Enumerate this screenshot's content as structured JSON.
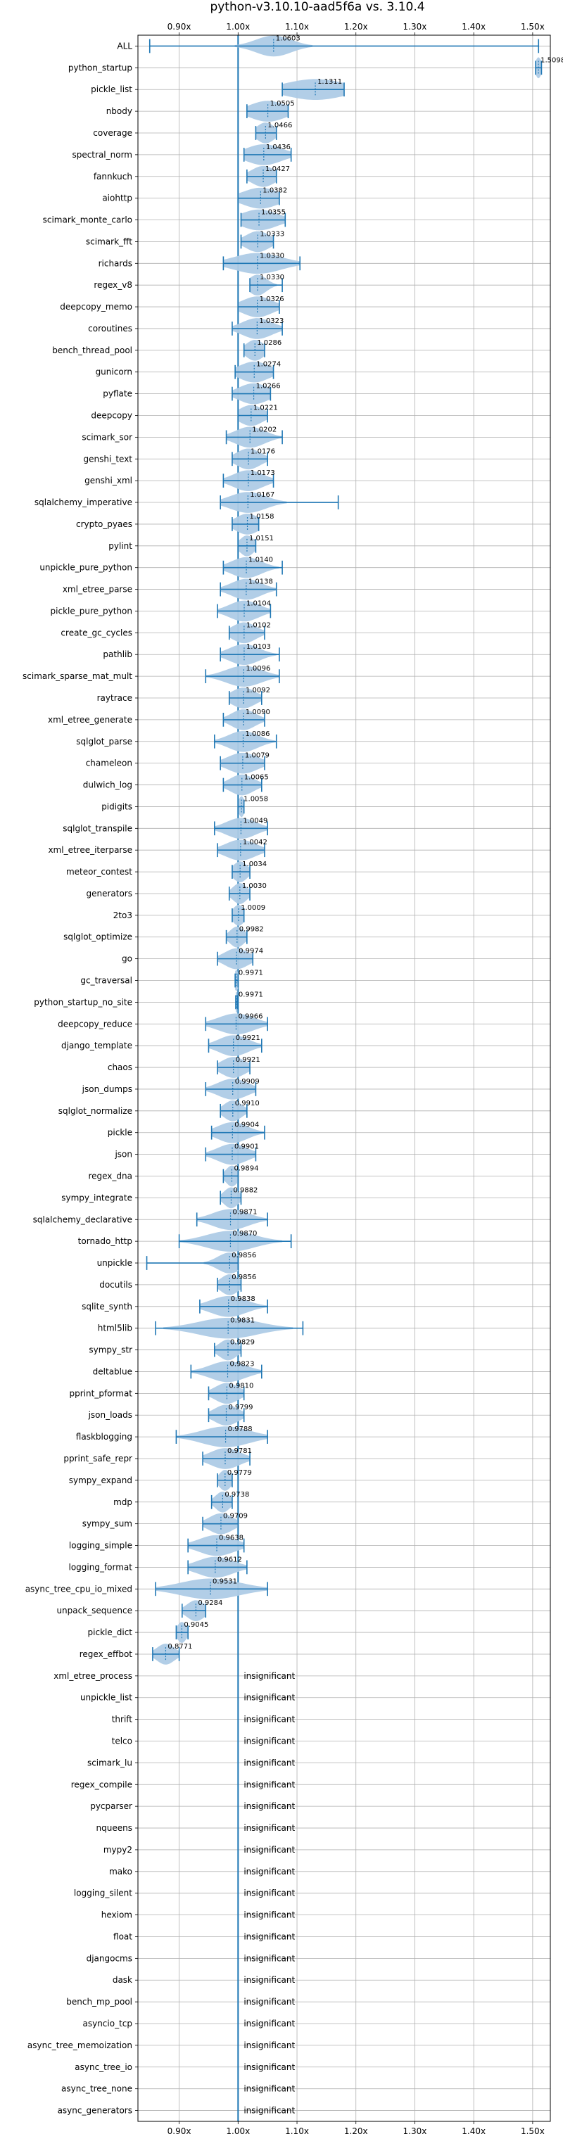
{
  "chart_data": {
    "type": "violin",
    "title": "python-v3.10.10-aad5f6a vs. 3.10.4",
    "xlabel": "",
    "ylabel": "",
    "x_scale": "ratio",
    "xlim": [
      0.83,
      1.53
    ],
    "x_ticks": [
      0.9,
      1.0,
      1.1,
      1.2,
      1.3,
      1.4,
      1.5
    ],
    "x_tick_labels": [
      "0.90x",
      "1.00x",
      "1.10x",
      "1.20x",
      "1.30x",
      "1.40x",
      "1.50x"
    ],
    "reference_line": 1.0,
    "grid": true,
    "colors": {
      "violin": "#aecbe6",
      "line": "#1f77b4",
      "grid": "#b0b0b0"
    },
    "insignificant_label": "insignificant",
    "benchmarks": [
      {
        "name": "ALL",
        "mean": 1.0603,
        "min": 0.85,
        "max": 1.51,
        "spread": 0.03,
        "label": "1.0603"
      },
      {
        "name": "python_startup",
        "mean": 1.5098,
        "min": 1.505,
        "max": 1.515,
        "spread": 0.005,
        "label": "1.5098"
      },
      {
        "name": "pickle_list",
        "mean": 1.1311,
        "min": 1.075,
        "max": 1.18,
        "spread": 0.05,
        "label": "1.1311"
      },
      {
        "name": "nbody",
        "mean": 1.0505,
        "min": 1.015,
        "max": 1.085,
        "spread": 0.03,
        "label": "1.0505"
      },
      {
        "name": "coverage",
        "mean": 1.0466,
        "min": 1.03,
        "max": 1.065,
        "spread": 0.015,
        "label": "1.0466"
      },
      {
        "name": "spectral_norm",
        "mean": 1.0436,
        "min": 1.01,
        "max": 1.09,
        "spread": 0.03,
        "label": "1.0436"
      },
      {
        "name": "fannkuch",
        "mean": 1.0427,
        "min": 1.015,
        "max": 1.065,
        "spread": 0.02,
        "label": "1.0427"
      },
      {
        "name": "aiohttp",
        "mean": 1.0382,
        "min": 1.0,
        "max": 1.07,
        "spread": 0.03,
        "label": "1.0382"
      },
      {
        "name": "scimark_monte_carlo",
        "mean": 1.0355,
        "min": 1.005,
        "max": 1.08,
        "spread": 0.03,
        "label": "1.0355"
      },
      {
        "name": "scimark_fft",
        "mean": 1.0333,
        "min": 1.005,
        "max": 1.06,
        "spread": 0.02,
        "label": "1.0333"
      },
      {
        "name": "richards",
        "mean": 1.033,
        "min": 0.975,
        "max": 1.105,
        "spread": 0.04,
        "label": "1.0330"
      },
      {
        "name": "regex_v8",
        "mean": 1.033,
        "min": 1.02,
        "max": 1.075,
        "spread": 0.015,
        "label": "1.0330"
      },
      {
        "name": "deepcopy_memo",
        "mean": 1.0326,
        "min": 1.0,
        "max": 1.07,
        "spread": 0.025,
        "label": "1.0326"
      },
      {
        "name": "coroutines",
        "mean": 1.0323,
        "min": 0.99,
        "max": 1.075,
        "spread": 0.025,
        "label": "1.0323"
      },
      {
        "name": "bench_thread_pool",
        "mean": 1.0286,
        "min": 1.01,
        "max": 1.045,
        "spread": 0.015,
        "label": "1.0286"
      },
      {
        "name": "gunicorn",
        "mean": 1.0274,
        "min": 0.995,
        "max": 1.06,
        "spread": 0.025,
        "label": "1.0274"
      },
      {
        "name": "pyflate",
        "mean": 1.0266,
        "min": 0.99,
        "max": 1.055,
        "spread": 0.025,
        "label": "1.0266"
      },
      {
        "name": "deepcopy",
        "mean": 1.0221,
        "min": 1.0,
        "max": 1.05,
        "spread": 0.02,
        "label": "1.0221"
      },
      {
        "name": "scimark_sor",
        "mean": 1.0202,
        "min": 0.98,
        "max": 1.075,
        "spread": 0.025,
        "label": "1.0202"
      },
      {
        "name": "genshi_text",
        "mean": 1.0176,
        "min": 0.99,
        "max": 1.05,
        "spread": 0.02,
        "label": "1.0176"
      },
      {
        "name": "genshi_xml",
        "mean": 1.0173,
        "min": 0.975,
        "max": 1.06,
        "spread": 0.025,
        "label": "1.0173"
      },
      {
        "name": "sqlalchemy_imperative",
        "mean": 1.0167,
        "min": 0.97,
        "max": 1.17,
        "spread": 0.03,
        "label": "1.0167"
      },
      {
        "name": "crypto_pyaes",
        "mean": 1.0158,
        "min": 0.99,
        "max": 1.035,
        "spread": 0.02,
        "label": "1.0158"
      },
      {
        "name": "pylint",
        "mean": 1.0151,
        "min": 1.0,
        "max": 1.03,
        "spread": 0.012,
        "label": "1.0151"
      },
      {
        "name": "unpickle_pure_python",
        "mean": 1.014,
        "min": 0.975,
        "max": 1.075,
        "spread": 0.025,
        "label": "1.0140"
      },
      {
        "name": "xml_etree_parse",
        "mean": 1.0138,
        "min": 0.97,
        "max": 1.065,
        "spread": 0.025,
        "label": "1.0138"
      },
      {
        "name": "pickle_pure_python",
        "mean": 1.0104,
        "min": 0.965,
        "max": 1.055,
        "spread": 0.025,
        "label": "1.0104"
      },
      {
        "name": "create_gc_cycles",
        "mean": 1.0102,
        "min": 0.985,
        "max": 1.045,
        "spread": 0.02,
        "label": "1.0102"
      },
      {
        "name": "pathlib",
        "mean": 1.0103,
        "min": 0.97,
        "max": 1.07,
        "spread": 0.025,
        "label": "1.0103"
      },
      {
        "name": "scimark_sparse_mat_mult",
        "mean": 1.0096,
        "min": 0.945,
        "max": 1.07,
        "spread": 0.03,
        "label": "1.0096"
      },
      {
        "name": "raytrace",
        "mean": 1.0092,
        "min": 0.985,
        "max": 1.04,
        "spread": 0.02,
        "label": "1.0092"
      },
      {
        "name": "xml_etree_generate",
        "mean": 1.009,
        "min": 0.975,
        "max": 1.045,
        "spread": 0.02,
        "label": "1.0090"
      },
      {
        "name": "sqlglot_parse",
        "mean": 1.0086,
        "min": 0.96,
        "max": 1.065,
        "spread": 0.025,
        "label": "1.0086"
      },
      {
        "name": "chameleon",
        "mean": 1.0079,
        "min": 0.97,
        "max": 1.045,
        "spread": 0.025,
        "label": "1.0079"
      },
      {
        "name": "dulwich_log",
        "mean": 1.0065,
        "min": 0.975,
        "max": 1.04,
        "spread": 0.02,
        "label": "1.0065"
      },
      {
        "name": "pidigits",
        "mean": 1.0058,
        "min": 1.0,
        "max": 1.01,
        "spread": 0.005,
        "label": "1.0058"
      },
      {
        "name": "sqlglot_transpile",
        "mean": 1.0049,
        "min": 0.96,
        "max": 1.05,
        "spread": 0.025,
        "label": "1.0049"
      },
      {
        "name": "xml_etree_iterparse",
        "mean": 1.0042,
        "min": 0.965,
        "max": 1.045,
        "spread": 0.025,
        "label": "1.0042"
      },
      {
        "name": "meteor_contest",
        "mean": 1.0034,
        "min": 0.99,
        "max": 1.02,
        "spread": 0.012,
        "label": "1.0034"
      },
      {
        "name": "generators",
        "mean": 1.003,
        "min": 0.985,
        "max": 1.02,
        "spread": 0.012,
        "label": "1.0030"
      },
      {
        "name": "2to3",
        "mean": 1.0009,
        "min": 0.99,
        "max": 1.01,
        "spread": 0.01,
        "label": "1.0009"
      },
      {
        "name": "sqlglot_optimize",
        "mean": 0.9982,
        "min": 0.98,
        "max": 1.015,
        "spread": 0.012,
        "label": "0.9982"
      },
      {
        "name": "go",
        "mean": 0.9974,
        "min": 0.965,
        "max": 1.025,
        "spread": 0.02,
        "label": "0.9974"
      },
      {
        "name": "gc_traversal",
        "mean": 0.9971,
        "min": 0.995,
        "max": 1.0,
        "spread": 0.004,
        "label": "0.9971"
      },
      {
        "name": "python_startup_no_site",
        "mean": 0.9971,
        "min": 0.996,
        "max": 0.999,
        "spread": 0.003,
        "label": "0.9971"
      },
      {
        "name": "deepcopy_reduce",
        "mean": 0.9966,
        "min": 0.945,
        "max": 1.05,
        "spread": 0.03,
        "label": "0.9966"
      },
      {
        "name": "django_template",
        "mean": 0.9921,
        "min": 0.95,
        "max": 1.04,
        "spread": 0.025,
        "label": "0.9921"
      },
      {
        "name": "chaos",
        "mean": 0.9921,
        "min": 0.965,
        "max": 1.02,
        "spread": 0.02,
        "label": "0.9921"
      },
      {
        "name": "json_dumps",
        "mean": 0.9909,
        "min": 0.945,
        "max": 1.03,
        "spread": 0.025,
        "label": "0.9909"
      },
      {
        "name": "sqlglot_normalize",
        "mean": 0.991,
        "min": 0.97,
        "max": 1.015,
        "spread": 0.015,
        "label": "0.9910"
      },
      {
        "name": "pickle",
        "mean": 0.9904,
        "min": 0.955,
        "max": 1.045,
        "spread": 0.025,
        "label": "0.9904"
      },
      {
        "name": "json",
        "mean": 0.9901,
        "min": 0.945,
        "max": 1.03,
        "spread": 0.025,
        "label": "0.9901"
      },
      {
        "name": "regex_dna",
        "mean": 0.9894,
        "min": 0.975,
        "max": 1.0,
        "spread": 0.01,
        "label": "0.9894"
      },
      {
        "name": "sympy_integrate",
        "mean": 0.9882,
        "min": 0.97,
        "max": 1.005,
        "spread": 0.012,
        "label": "0.9882"
      },
      {
        "name": "sqlalchemy_declarative",
        "mean": 0.9871,
        "min": 0.93,
        "max": 1.05,
        "spread": 0.03,
        "label": "0.9871"
      },
      {
        "name": "tornado_http",
        "mean": 0.987,
        "min": 0.9,
        "max": 1.09,
        "spread": 0.04,
        "label": "0.9870"
      },
      {
        "name": "unpickle",
        "mean": 0.9856,
        "min": 0.845,
        "max": 1.0,
        "spread": 0.02,
        "label": "0.9856"
      },
      {
        "name": "docutils",
        "mean": 0.9856,
        "min": 0.965,
        "max": 1.005,
        "spread": 0.015,
        "label": "0.9856"
      },
      {
        "name": "sqlite_synth",
        "mean": 0.9838,
        "min": 0.935,
        "max": 1.05,
        "spread": 0.03,
        "label": "0.9838"
      },
      {
        "name": "html5lib",
        "mean": 0.9831,
        "min": 0.86,
        "max": 1.11,
        "spread": 0.05,
        "label": "0.9831"
      },
      {
        "name": "sympy_str",
        "mean": 0.9829,
        "min": 0.96,
        "max": 1.005,
        "spread": 0.015,
        "label": "0.9829"
      },
      {
        "name": "deltablue",
        "mean": 0.9823,
        "min": 0.92,
        "max": 1.04,
        "spread": 0.03,
        "label": "0.9823"
      },
      {
        "name": "pprint_pformat",
        "mean": 0.981,
        "min": 0.95,
        "max": 1.01,
        "spread": 0.02,
        "label": "0.9810"
      },
      {
        "name": "json_loads",
        "mean": 0.9799,
        "min": 0.95,
        "max": 1.01,
        "spread": 0.02,
        "label": "0.9799"
      },
      {
        "name": "flaskblogging",
        "mean": 0.9788,
        "min": 0.895,
        "max": 1.05,
        "spread": 0.04,
        "label": "0.9788"
      },
      {
        "name": "pprint_safe_repr",
        "mean": 0.9781,
        "min": 0.94,
        "max": 1.02,
        "spread": 0.025,
        "label": "0.9781"
      },
      {
        "name": "sympy_expand",
        "mean": 0.9779,
        "min": 0.965,
        "max": 0.99,
        "spread": 0.01,
        "label": "0.9779"
      },
      {
        "name": "mdp",
        "mean": 0.9738,
        "min": 0.955,
        "max": 0.99,
        "spread": 0.012,
        "label": "0.9738"
      },
      {
        "name": "sympy_sum",
        "mean": 0.9709,
        "min": 0.94,
        "max": 1.0,
        "spread": 0.02,
        "label": "0.9709"
      },
      {
        "name": "logging_simple",
        "mean": 0.9638,
        "min": 0.915,
        "max": 1.01,
        "spread": 0.03,
        "label": "0.9638"
      },
      {
        "name": "logging_format",
        "mean": 0.9612,
        "min": 0.915,
        "max": 1.015,
        "spread": 0.03,
        "label": "0.9612"
      },
      {
        "name": "async_tree_cpu_io_mixed",
        "mean": 0.9531,
        "min": 0.86,
        "max": 1.05,
        "spread": 0.05,
        "label": "0.9531"
      },
      {
        "name": "unpack_sequence",
        "mean": 0.9284,
        "min": 0.905,
        "max": 0.945,
        "spread": 0.015,
        "label": "0.9284"
      },
      {
        "name": "pickle_dict",
        "mean": 0.9045,
        "min": 0.895,
        "max": 0.915,
        "spread": 0.008,
        "label": "0.9045"
      },
      {
        "name": "regex_effbot",
        "mean": 0.8771,
        "min": 0.855,
        "max": 0.9,
        "spread": 0.015,
        "label": "0.8771"
      },
      {
        "name": "xml_etree_process",
        "insignificant": true
      },
      {
        "name": "unpickle_list",
        "insignificant": true
      },
      {
        "name": "thrift",
        "insignificant": true
      },
      {
        "name": "telco",
        "insignificant": true
      },
      {
        "name": "scimark_lu",
        "insignificant": true
      },
      {
        "name": "regex_compile",
        "insignificant": true
      },
      {
        "name": "pycparser",
        "insignificant": true
      },
      {
        "name": "nqueens",
        "insignificant": true
      },
      {
        "name": "mypy2",
        "insignificant": true
      },
      {
        "name": "mako",
        "insignificant": true
      },
      {
        "name": "logging_silent",
        "insignificant": true
      },
      {
        "name": "hexiom",
        "insignificant": true
      },
      {
        "name": "float",
        "insignificant": true
      },
      {
        "name": "djangocms",
        "insignificant": true
      },
      {
        "name": "dask",
        "insignificant": true
      },
      {
        "name": "bench_mp_pool",
        "insignificant": true
      },
      {
        "name": "asyncio_tcp",
        "insignificant": true
      },
      {
        "name": "async_tree_memoization",
        "insignificant": true
      },
      {
        "name": "async_tree_io",
        "insignificant": true
      },
      {
        "name": "async_tree_none",
        "insignificant": true
      },
      {
        "name": "async_generators",
        "insignificant": true
      }
    ]
  }
}
